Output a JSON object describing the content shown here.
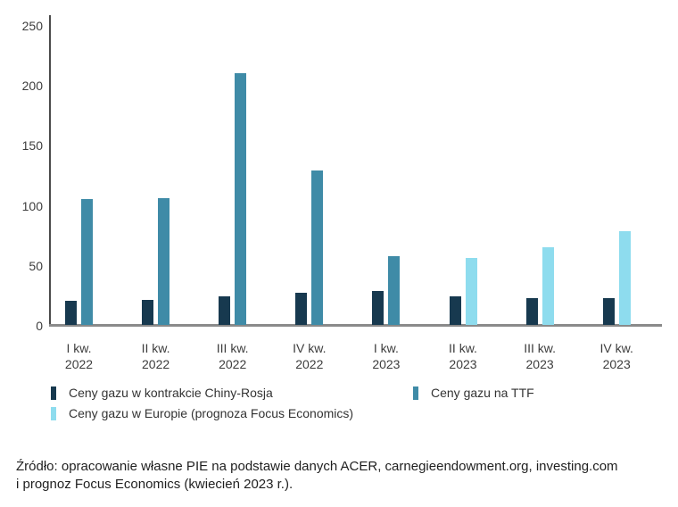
{
  "chart_data": {
    "type": "bar",
    "title": "",
    "xlabel": "",
    "ylabel": "",
    "categories": [
      {
        "line1": "I kw.",
        "line2": "2022"
      },
      {
        "line1": "II kw.",
        "line2": "2022"
      },
      {
        "line1": "III kw.",
        "line2": "2022"
      },
      {
        "line1": "IV kw.",
        "line2": "2022"
      },
      {
        "line1": "I kw.",
        "line2": "2023"
      },
      {
        "line1": "II kw.",
        "line2": "2023"
      },
      {
        "line1": "III kw.",
        "line2": "2023"
      },
      {
        "line1": "IV kw.",
        "line2": "2023"
      }
    ],
    "series": [
      {
        "name": "Ceny gazu w kontrakcie Chiny-Rosja",
        "color": "#17394F",
        "values": [
          20,
          21,
          24,
          27,
          28,
          24,
          22,
          22
        ]
      },
      {
        "name": "Ceny gazu na TTF",
        "color": "#3F8BA7",
        "values": [
          105,
          106,
          210,
          129,
          57,
          null,
          null,
          null
        ]
      },
      {
        "name": "Ceny gazu w Europie (prognoza Focus Economics)",
        "color": "#8EDCEE",
        "values": [
          null,
          null,
          null,
          null,
          null,
          56,
          65,
          78
        ]
      }
    ],
    "ylim": [
      0,
      250
    ],
    "yticks": [
      0,
      50,
      100,
      150,
      200,
      250
    ],
    "grid": false,
    "legend_position": "bottom-left-two-rows"
  },
  "colors": {
    "background": "#FFFFFF",
    "axis_line": "#4B4B4B",
    "baseline": "#8A8A8A",
    "tick_text": "#3D3D3D",
    "legend_text": "#333333",
    "source_text": "#1F1F1F"
  },
  "source": {
    "line1": "Źródło: opracowanie własne PIE na podstawie danych ACER, carnegieendowment.org, investing.com",
    "line2": "i prognoz Focus Economics (kwiecień 2023 r.)."
  }
}
